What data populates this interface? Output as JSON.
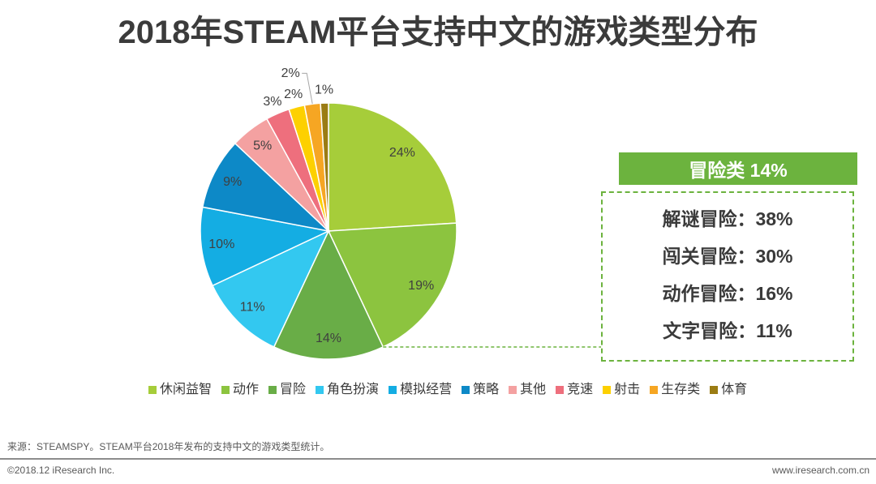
{
  "chart_data": {
    "type": "pie",
    "title": "2018年STEAM平台支持中文的游戏类型分布",
    "categories": [
      "休闲益智",
      "动作",
      "冒险",
      "角色扮演",
      "模拟经营",
      "策略",
      "其他",
      "竞速",
      "射击",
      "生存类",
      "体育"
    ],
    "values": [
      24,
      19,
      14,
      11,
      10,
      9,
      5,
      3,
      2,
      2,
      1
    ],
    "value_labels": [
      "24%",
      "19%",
      "14%",
      "11%",
      "10%",
      "9%",
      "5%",
      "3%",
      "2%",
      "2%",
      "1%"
    ],
    "colors": [
      "#a6cd3a",
      "#8cc43f",
      "#69ad47",
      "#33c8f0",
      "#14ade3",
      "#0d89c7",
      "#f4a1a1",
      "#ee6f7d",
      "#fdd000",
      "#f6a623",
      "#9b7c14"
    ],
    "legend_position": "bottom"
  },
  "callout": {
    "header": "冒险类 14%",
    "items": [
      "解谜冒险：38%",
      "闯关冒险：30%",
      "动作冒险：16%",
      "文字冒险：11%"
    ],
    "accent_color": "#6cb33e"
  },
  "footer": {
    "source": "来源：STEAMSPY。STEAM平台2018年发布的支持中文的游戏类型统计。",
    "copyright": "©2018.12 iResearch Inc.",
    "website": "www.iresearch.com.cn"
  }
}
